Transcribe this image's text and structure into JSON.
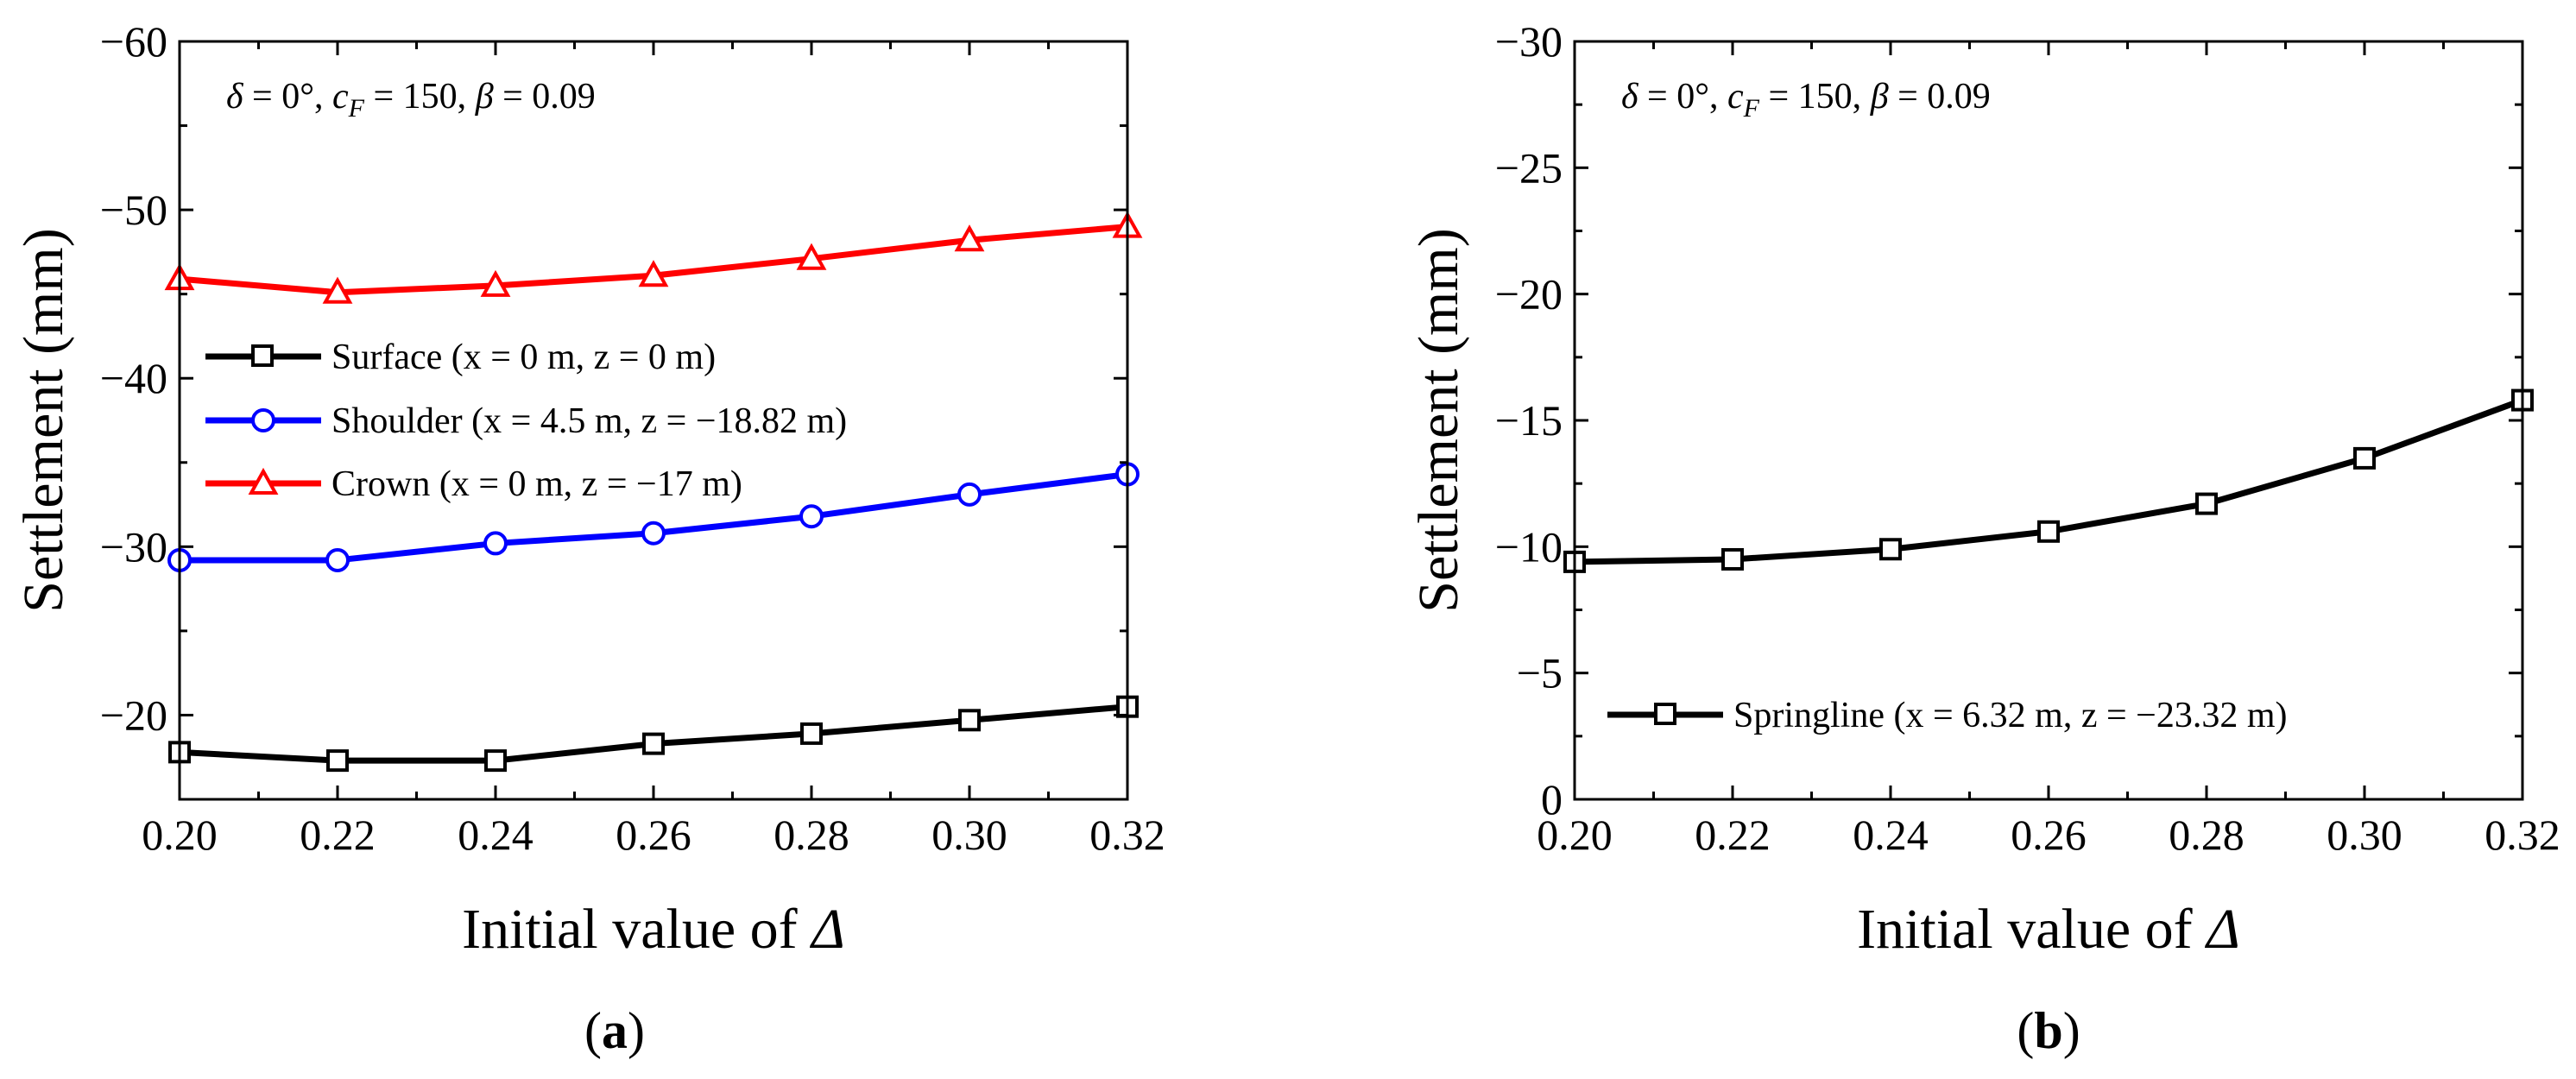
{
  "chart_data": [
    {
      "type": "line",
      "panel_label": "a",
      "xlabel": "Initial value of Δ",
      "ylabel": "Settlement (mm)",
      "xlim": [
        0.2,
        0.32
      ],
      "ylim": [
        -15,
        -60
      ],
      "x": [
        0.2,
        0.22,
        0.24,
        0.26,
        0.28,
        0.3,
        0.32
      ],
      "x_tick_labels": [
        "0.20",
        "0.22",
        "0.24",
        "0.26",
        "0.28",
        "0.30",
        "0.32"
      ],
      "y_ticks": [
        -20,
        -30,
        -40,
        -50,
        -60
      ],
      "y_tick_labels": [
        "−20",
        "−30",
        "−40",
        "−50",
        "−60"
      ],
      "annotation": {
        "delta_sym": "δ",
        "delta_rest": " = 0°, ",
        "c_sym": "c",
        "c_sub": "F",
        "c_rest": " = 150, ",
        "beta_sym": "β",
        "beta_rest": " = 0.09"
      },
      "legend_position": "center-left",
      "series": [
        {
          "name": "Surface (x = 0 m, z = 0 m)",
          "color": "#000000",
          "marker": "square",
          "values": [
            -17.8,
            -17.3,
            -17.3,
            -18.3,
            -18.9,
            -19.7,
            -20.5
          ]
        },
        {
          "name": "Shoulder (x = 4.5 m, z = −18.82 m)",
          "color": "#0000ff",
          "marker": "circle",
          "values": [
            -29.2,
            -29.2,
            -30.2,
            -30.8,
            -31.8,
            -33.1,
            -34.3
          ]
        },
        {
          "name": "Crown (x = 0 m, z = −17 m)",
          "color": "#ff0000",
          "marker": "triangle",
          "values": [
            -45.9,
            -45.1,
            -45.5,
            -46.1,
            -47.1,
            -48.2,
            -49.0
          ]
        }
      ]
    },
    {
      "type": "line",
      "panel_label": "b",
      "xlabel": "Initial value of Δ",
      "ylabel": "Settlement (mm)",
      "xlim": [
        0.2,
        0.32
      ],
      "ylim": [
        0,
        -30
      ],
      "x": [
        0.2,
        0.22,
        0.24,
        0.26,
        0.28,
        0.3,
        0.32
      ],
      "x_tick_labels": [
        "0.20",
        "0.22",
        "0.24",
        "0.26",
        "0.28",
        "0.30",
        "0.32"
      ],
      "y_ticks": [
        0,
        -5,
        -10,
        -15,
        -20,
        -25,
        -30
      ],
      "y_tick_labels": [
        "0",
        "−5",
        "−10",
        "−15",
        "−20",
        "−25",
        "−30"
      ],
      "annotation": {
        "delta_sym": "δ",
        "delta_rest": " = 0°, ",
        "c_sym": "c",
        "c_sub": "F",
        "c_rest": " = 150, ",
        "beta_sym": "β",
        "beta_rest": " = 0.09"
      },
      "legend_position": "lower-left",
      "series": [
        {
          "name": "Springline (x = 6.32 m, z = −23.32 m)",
          "color": "#000000",
          "marker": "square",
          "values": [
            -9.4,
            -9.5,
            -9.9,
            -10.6,
            -11.7,
            -13.5,
            -15.8
          ]
        }
      ]
    }
  ]
}
